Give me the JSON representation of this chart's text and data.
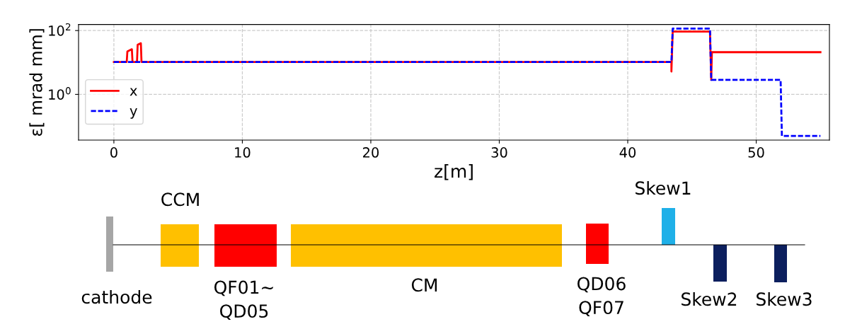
{
  "chart_data": {
    "type": "line",
    "xlabel": "z[m]",
    "ylabel": "ε[ mrad mm]",
    "log": "y",
    "xlim": [
      -2.75,
      55.7
    ],
    "ylim": [
      0.037,
      155
    ],
    "xticks": [
      0,
      10,
      20,
      30,
      40,
      50
    ],
    "yticks": [
      {
        "value": 1,
        "label": "10$^{0}$"
      },
      {
        "value": 100,
        "label": "10$^{2}$"
      }
    ],
    "grid": true,
    "legend": "left",
    "series": [
      {
        "name": "x",
        "color": "#ff0000",
        "line_style": "solid",
        "x": [
          0,
          1.0,
          1.05,
          1.4,
          1.45,
          1.8,
          1.85,
          2.1,
          2.15,
          43.4,
          43.4,
          43.5,
          46.4,
          46.5,
          46.55,
          55
        ],
        "values": [
          10.4,
          10.4,
          22,
          26,
          10.4,
          10.4,
          36,
          40,
          10.4,
          10.4,
          5.2,
          93,
          93,
          2.85,
          21,
          21
        ]
      },
      {
        "name": "y",
        "color": "#0000ff",
        "line_style": "dashed",
        "x": [
          0,
          43.4,
          43.5,
          46.4,
          46.5,
          51.9,
          52.0,
          55
        ],
        "values": [
          10.4,
          10.4,
          115,
          115,
          2.85,
          2.85,
          0.05,
          0.05
        ]
      }
    ],
    "annotations": [
      "cathode",
      "CCM",
      "QF01~\nQD05",
      "CM",
      "QD06\nQF07",
      "Skew1",
      "Skew2",
      "Skew3"
    ]
  }
}
